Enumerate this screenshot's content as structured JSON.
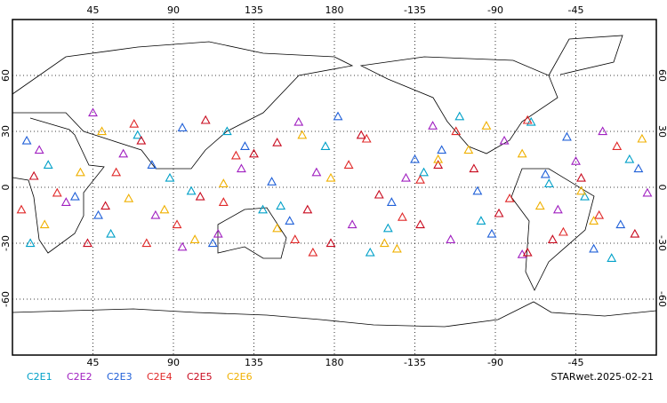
{
  "chart_data": {
    "type": "scatter",
    "marker": "triangle",
    "xlim": [
      0,
      360
    ],
    "ylim": [
      -90,
      90
    ],
    "xticks": [
      45,
      90,
      135,
      180,
      {
        "value": 225,
        "label": "-135"
      },
      {
        "value": 270,
        "label": "-90"
      },
      {
        "value": 315,
        "label": "-45"
      }
    ],
    "yticks": [
      60,
      30,
      0,
      -30,
      -60
    ],
    "grid": true,
    "stamp": "STARwet.2025-02-21",
    "series": [
      {
        "name": "C2E1",
        "color": "#00a0c8",
        "x": [
          20,
          55,
          88,
          120,
          150,
          175,
          200,
          230,
          262,
          290,
          320,
          345,
          10,
          70,
          140,
          210,
          250,
          300,
          335,
          100
        ],
        "values": [
          12,
          -25,
          5,
          30,
          -10,
          22,
          -35,
          8,
          -18,
          35,
          -5,
          15,
          -30,
          28,
          -12,
          -22,
          38,
          2,
          -38,
          -2
        ]
      },
      {
        "name": "C2E2",
        "color": "#a020c0",
        "x": [
          30,
          62,
          95,
          128,
          160,
          190,
          220,
          245,
          275,
          305,
          330,
          355,
          15,
          80,
          170,
          235,
          285,
          315,
          45,
          115
        ],
        "values": [
          -8,
          18,
          -32,
          10,
          35,
          -20,
          5,
          -28,
          25,
          -12,
          30,
          -3,
          20,
          -15,
          8,
          33,
          -36,
          14,
          40,
          -25
        ]
      },
      {
        "name": "C2E3",
        "color": "#2060d8",
        "x": [
          8,
          48,
          78,
          112,
          145,
          182,
          212,
          240,
          268,
          298,
          325,
          350,
          35,
          95,
          155,
          225,
          260,
          310,
          340,
          130
        ],
        "values": [
          25,
          -15,
          12,
          -30,
          3,
          38,
          -8,
          20,
          -25,
          7,
          -33,
          10,
          -5,
          32,
          -18,
          15,
          -2,
          27,
          -20,
          22
        ]
      },
      {
        "name": "C2E4",
        "color": "#e02828",
        "x": [
          25,
          58,
          92,
          125,
          158,
          188,
          218,
          248,
          278,
          308,
          338,
          5,
          68,
          118,
          168,
          228,
          288,
          328,
          75,
          198
        ],
        "values": [
          -3,
          8,
          -20,
          17,
          -28,
          12,
          -16,
          30,
          -6,
          -24,
          22,
          -12,
          34,
          -8,
          -35,
          4,
          36,
          -15,
          -30,
          26
        ]
      },
      {
        "name": "C2E5",
        "color": "#c80a1e",
        "x": [
          12,
          42,
          72,
          105,
          135,
          165,
          195,
          228,
          258,
          288,
          318,
          348,
          52,
          108,
          148,
          205,
          272,
          302,
          178,
          238
        ],
        "values": [
          6,
          -30,
          25,
          -5,
          18,
          -12,
          28,
          -20,
          10,
          -35,
          5,
          -25,
          -10,
          36,
          24,
          -4,
          -14,
          -28,
          -30,
          12
        ]
      },
      {
        "name": "C2E6",
        "color": "#f0b000",
        "x": [
          18,
          50,
          85,
          118,
          148,
          178,
          208,
          238,
          265,
          295,
          325,
          352,
          38,
          102,
          162,
          215,
          255,
          318,
          65,
          285
        ],
        "values": [
          -20,
          30,
          -12,
          2,
          -22,
          5,
          -30,
          15,
          33,
          -10,
          -18,
          26,
          8,
          -28,
          28,
          -33,
          20,
          -2,
          -6,
          18
        ]
      }
    ]
  }
}
